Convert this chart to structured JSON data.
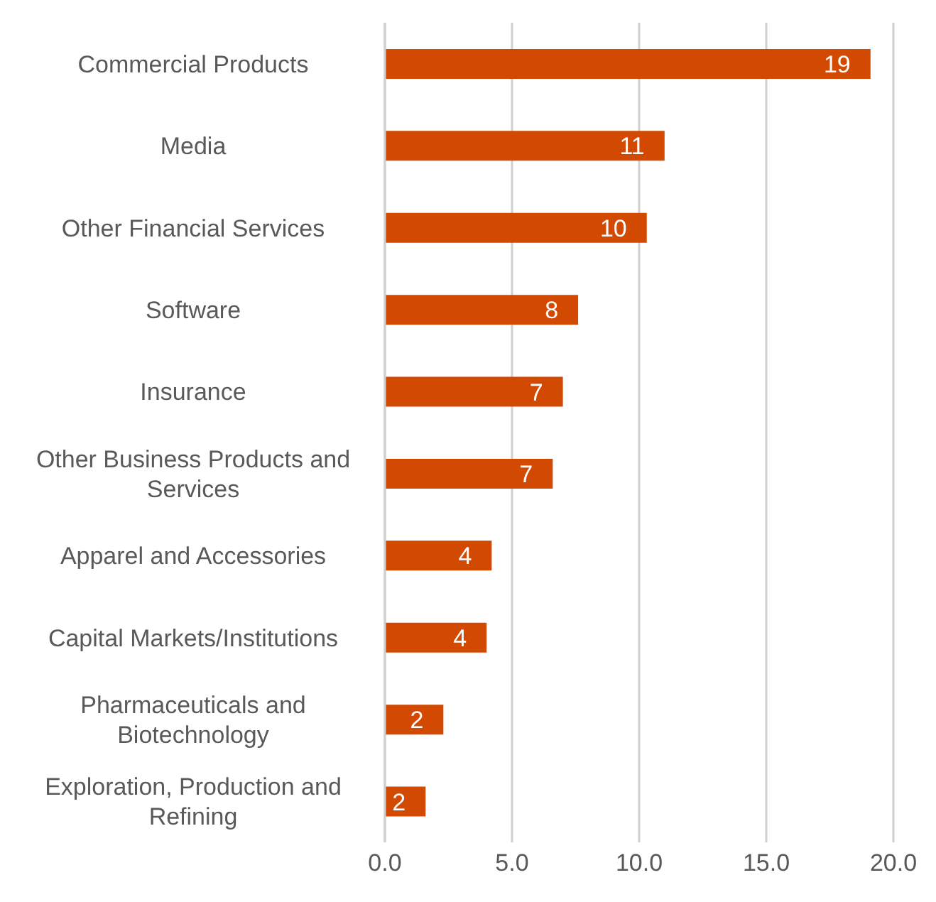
{
  "chart_data": {
    "type": "bar",
    "orientation": "horizontal",
    "categories": [
      "Commercial Products",
      "Media",
      "Other Financial Services",
      "Software",
      "Insurance",
      "Other Business Products and Services",
      "Apparel and Accessories",
      "Capital Markets/Institutions",
      "Pharmaceuticals and Biotechnology",
      "Exploration, Production and Refining"
    ],
    "values": [
      19.1,
      11.0,
      10.3,
      7.6,
      7.0,
      6.6,
      4.2,
      4.0,
      2.3,
      1.6
    ],
    "value_labels": [
      "19",
      "11",
      "10",
      "8",
      "7",
      "7",
      "4",
      "4",
      "2",
      "2"
    ],
    "color": "#d24a02",
    "xlim": [
      0,
      20
    ],
    "xticks": [
      {
        "value": 0,
        "label": "0.0"
      },
      {
        "value": 5,
        "label": "5.0"
      },
      {
        "value": 10,
        "label": "10.0"
      },
      {
        "value": 15,
        "label": "15.0"
      },
      {
        "value": 20,
        "label": "20.0"
      }
    ],
    "grid": "x"
  }
}
